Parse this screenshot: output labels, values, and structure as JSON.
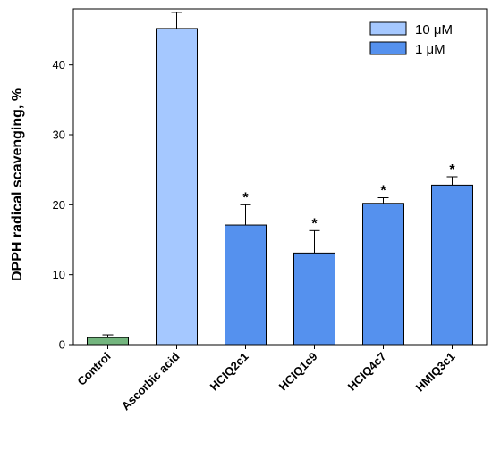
{
  "chart_data": {
    "type": "bar",
    "title": "",
    "xlabel": "",
    "ylabel": "DPPH radical scavenging, %",
    "ylim": [
      0,
      48
    ],
    "yticks": [
      0,
      10,
      20,
      30,
      40
    ],
    "grid": false,
    "legend_position": "top-right",
    "categories": [
      "Control",
      "Ascorbic acid",
      "HCIQ2c1",
      "HCIQ1c9",
      "HCIQ4c7",
      "HMIQ3c1"
    ],
    "values": [
      1.0,
      45.2,
      17.1,
      13.1,
      20.2,
      22.8
    ],
    "errors": [
      0.4,
      2.3,
      2.9,
      3.2,
      0.8,
      1.2
    ],
    "significance": [
      "",
      "",
      "*",
      "*",
      "*",
      "*"
    ],
    "bar_colors": [
      "#73b57e",
      "#a5c8ff",
      "#5591ee",
      "#5591ee",
      "#5591ee",
      "#5591ee"
    ],
    "legend": [
      {
        "label": "10 μM",
        "color": "#a5c8ff"
      },
      {
        "label": "1 μM",
        "color": "#5591ee"
      }
    ]
  }
}
